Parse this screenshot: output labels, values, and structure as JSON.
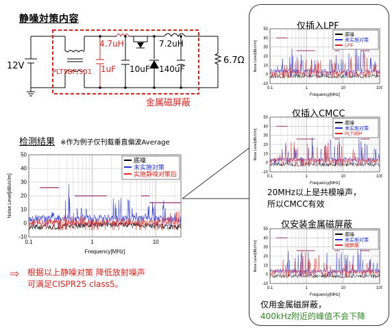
{
  "main_title": "静噪対策内容",
  "circuit": {
    "source_voltage": "12V",
    "cmcc_label": "PLT5BP/501",
    "c1": "1uF",
    "l1": "4.7uH",
    "c2": "10uF",
    "l2": "7.2uH",
    "c3": "140uF",
    "load": "6.7Ω",
    "shield_label": "金属磁屏蔽"
  },
  "results": {
    "title": "检测结果",
    "subtitle": "※作为例子仅刊载垂直偏波Average"
  },
  "conclusion": {
    "line1": "根据以上静噪对策 降低放射噪声",
    "line2": "可满足CISPR25 class5。"
  },
  "side_panels": [
    {
      "title": "仅插入LPF"
    },
    {
      "title": "仅插入CMCC",
      "note1": "20MHz以上是共模噪声，",
      "note2": "所以CMCC有效"
    },
    {
      "title": "仅安装金属磁屏蔽",
      "note1": "仅用金属磁屏蔽，",
      "note2": "400kHz附近的峰值不会下降"
    }
  ],
  "chart_data": [
    {
      "type": "line",
      "id": "main",
      "xlabel": "Frequency[MHz]",
      "ylabel": "Noise Level[dBuV/m]",
      "xscale": "log",
      "xlim": [
        0.1,
        25
      ],
      "ylim": [
        -10,
        50
      ],
      "xticks": [
        "0.1",
        "1",
        "10"
      ],
      "yticks": [
        "-10",
        "0",
        "10",
        "20",
        "30",
        "40",
        "50"
      ],
      "legend_position": "top-right",
      "limit_line": [
        {
          "x": [
            0.15,
            0.3
          ],
          "y": 26
        },
        {
          "x": [
            0.53,
            1.7
          ],
          "y": 20
        },
        {
          "x": [
            5.9,
            8
          ],
          "y": 20
        },
        {
          "x": [
            8,
            25
          ],
          "y": 15
        }
      ],
      "series": [
        {
          "name": "底噪",
          "color": "#000000",
          "x": [
            0.15,
            0.5,
            1,
            3,
            10,
            25
          ],
          "y": [
            -3,
            -2,
            -1,
            -1,
            -2,
            -3
          ]
        },
        {
          "name": "未实施対策",
          "color": "#1f2ed6",
          "x": [
            0.15,
            0.4,
            1,
            3,
            6,
            10,
            20,
            25
          ],
          "y": [
            2,
            28,
            4,
            23,
            4,
            22,
            12,
            26
          ]
        },
        {
          "name": "实施静噪对策后",
          "color": "#e0211b",
          "x": [
            0.15,
            0.5,
            1,
            3,
            10,
            25
          ],
          "y": [
            -1,
            10,
            0,
            5,
            4,
            9
          ]
        }
      ]
    },
    {
      "type": "line",
      "id": "lpf",
      "xlabel": "Frequency[MHz]",
      "ylabel": "Noise Level[dBuV/m]",
      "xscale": "log",
      "xlim": [
        0.1,
        100
      ],
      "ylim": [
        -10,
        50
      ],
      "xticks": [
        "0.1",
        "1",
        "10",
        "100"
      ],
      "yticks": [
        "-10",
        "0",
        "10",
        "20",
        "30",
        "40",
        "50"
      ],
      "legend_position": "top-right",
      "series": [
        {
          "name": "底噪",
          "color": "#000000",
          "x": [
            0.1,
            100
          ],
          "y": [
            -2,
            -2
          ]
        },
        {
          "name": "未实施对策",
          "color": "#1f2ed6",
          "x": [
            0.1,
            0.4,
            10,
            30,
            100
          ],
          "y": [
            2,
            28,
            22,
            30,
            10
          ]
        },
        {
          "name": "LPF",
          "color": "#e0211b",
          "x": [
            0.1,
            0.4,
            10,
            30,
            100
          ],
          "y": [
            0,
            14,
            18,
            32,
            8
          ]
        }
      ]
    },
    {
      "type": "line",
      "id": "cmcc",
      "xlabel": "Frequency[MHz]",
      "ylabel": "Noise Level[dBuV/m]",
      "xscale": "log",
      "xlim": [
        0.1,
        100
      ],
      "ylim": [
        -10,
        50
      ],
      "xticks": [
        "0.1",
        "1",
        "10",
        "100"
      ],
      "yticks": [
        "-10",
        "0",
        "10",
        "20",
        "30",
        "40",
        "50"
      ],
      "legend_position": "top-right",
      "series": [
        {
          "name": "底噪",
          "color": "#000000",
          "x": [
            0.1,
            100
          ],
          "y": [
            -2,
            -2
          ]
        },
        {
          "name": "未实施对策",
          "color": "#1f2ed6",
          "x": [
            0.1,
            0.4,
            10,
            30,
            100
          ],
          "y": [
            2,
            28,
            22,
            30,
            10
          ]
        },
        {
          "name": "PLT5BP",
          "color": "#e0211b",
          "x": [
            0.1,
            0.4,
            10,
            30,
            100
          ],
          "y": [
            1,
            25,
            20,
            10,
            4
          ]
        }
      ]
    },
    {
      "type": "line",
      "id": "shield",
      "xlabel": "Frequency[MHz]",
      "ylabel": "Noise Level[dBuV/m]",
      "xscale": "log",
      "xlim": [
        0.1,
        100
      ],
      "ylim": [
        -10,
        50
      ],
      "xticks": [
        "0.1",
        "1",
        "10",
        "100"
      ],
      "yticks": [
        "-10",
        "0",
        "10",
        "20",
        "30",
        "40",
        "50"
      ],
      "legend_position": "top-right",
      "series": [
        {
          "name": "底噪",
          "color": "#000000",
          "x": [
            0.1,
            100
          ],
          "y": [
            -2,
            -2
          ]
        },
        {
          "name": "未实施对策",
          "color": "#1f2ed6",
          "x": [
            0.1,
            0.4,
            10,
            30,
            100
          ],
          "y": [
            2,
            28,
            22,
            30,
            10
          ]
        },
        {
          "name": "磁屏蔽",
          "color": "#e0211b",
          "x": [
            0.1,
            0.4,
            10,
            30,
            100
          ],
          "y": [
            1,
            27,
            12,
            20,
            5
          ]
        }
      ]
    }
  ]
}
